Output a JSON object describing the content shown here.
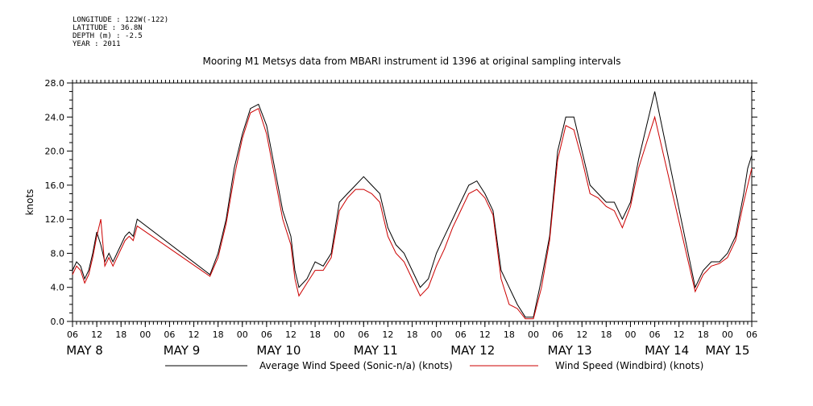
{
  "meta": {
    "longitude": "LONGITUDE : 122W(-122)",
    "latitude": "LATITUDE : 36.8N",
    "depth": "DEPTH (m) : -2.5",
    "year": "YEAR : 2011"
  },
  "chart_data": {
    "type": "line",
    "title": "Mooring M1 Metsys data from MBARI instrument id 1396 at original sampling intervals",
    "ylabel": "knots",
    "xlabel": "",
    "ylim": [
      0,
      28.0
    ],
    "xlim_hours": [
      0,
      168
    ],
    "y_ticks": [
      "0.0",
      "4.0",
      "8.0",
      "12.0",
      "16.0",
      "20.0",
      "24.0",
      "28.0"
    ],
    "hour_tick_labels": [
      "06",
      "12",
      "18",
      "00",
      "06",
      "12",
      "18",
      "00",
      "06",
      "12",
      "18",
      "00",
      "06",
      "12",
      "18",
      "00",
      "06",
      "12",
      "18",
      "00",
      "06",
      "12",
      "18",
      "00",
      "06",
      "12",
      "18",
      "00",
      "06"
    ],
    "day_labels": [
      "MAY  8",
      "MAY  9",
      "MAY 10",
      "MAY 11",
      "MAY 12",
      "MAY 13",
      "MAY 14",
      "MAY 15"
    ],
    "grid": false,
    "legend_position": "bottom",
    "series": [
      {
        "name": "Average Wind Speed (Sonic-n/a) (knots)",
        "color": "#000000",
        "points": [
          [
            0,
            6
          ],
          [
            1,
            7
          ],
          [
            2,
            6.5
          ],
          [
            3,
            5
          ],
          [
            4,
            6
          ],
          [
            5,
            8
          ],
          [
            6,
            10.5
          ],
          [
            7,
            9
          ],
          [
            8,
            7
          ],
          [
            9,
            8
          ],
          [
            10,
            7
          ],
          [
            11,
            8
          ],
          [
            12,
            9
          ],
          [
            13,
            10
          ],
          [
            14,
            10.5
          ],
          [
            15,
            10
          ],
          [
            16,
            12
          ],
          [
            34,
            5.5
          ],
          [
            36,
            8
          ],
          [
            38,
            12
          ],
          [
            40,
            18
          ],
          [
            42,
            22
          ],
          [
            44,
            25
          ],
          [
            46,
            25.5
          ],
          [
            48,
            23
          ],
          [
            50,
            18
          ],
          [
            52,
            13
          ],
          [
            54,
            10
          ],
          [
            55,
            6
          ],
          [
            56,
            4
          ],
          [
            58,
            5
          ],
          [
            60,
            7
          ],
          [
            62,
            6.5
          ],
          [
            64,
            8
          ],
          [
            66,
            14
          ],
          [
            68,
            15
          ],
          [
            70,
            16
          ],
          [
            72,
            17
          ],
          [
            74,
            16
          ],
          [
            76,
            15
          ],
          [
            78,
            11
          ],
          [
            80,
            9
          ],
          [
            82,
            8
          ],
          [
            84,
            6
          ],
          [
            86,
            4
          ],
          [
            88,
            5
          ],
          [
            90,
            8
          ],
          [
            92,
            10
          ],
          [
            94,
            12
          ],
          [
            96,
            14
          ],
          [
            98,
            16
          ],
          [
            100,
            16.5
          ],
          [
            102,
            15
          ],
          [
            104,
            13
          ],
          [
            106,
            6
          ],
          [
            108,
            4
          ],
          [
            110,
            2
          ],
          [
            112,
            0.5
          ],
          [
            114,
            0.5
          ],
          [
            116,
            5
          ],
          [
            118,
            10
          ],
          [
            120,
            20
          ],
          [
            122,
            24
          ],
          [
            124,
            24
          ],
          [
            126,
            20
          ],
          [
            128,
            16
          ],
          [
            130,
            15
          ],
          [
            132,
            14
          ],
          [
            134,
            14
          ],
          [
            136,
            12
          ],
          [
            138,
            14
          ],
          [
            140,
            19
          ],
          [
            142,
            23
          ],
          [
            144,
            27
          ],
          [
            154,
            4
          ],
          [
            156,
            6
          ],
          [
            158,
            7
          ],
          [
            160,
            7
          ],
          [
            162,
            8
          ],
          [
            164,
            10
          ],
          [
            166,
            15
          ],
          [
            167,
            18
          ],
          [
            168,
            19.5
          ]
        ]
      },
      {
        "name": "Wind Speed (Windbird) (knots)",
        "color": "#cc0000",
        "points": [
          [
            0,
            5.5
          ],
          [
            1,
            6.5
          ],
          [
            2,
            6
          ],
          [
            3,
            4.5
          ],
          [
            4,
            5.5
          ],
          [
            5,
            7.5
          ],
          [
            6,
            10
          ],
          [
            7,
            12
          ],
          [
            8,
            6.5
          ],
          [
            9,
            7.5
          ],
          [
            10,
            6.5
          ],
          [
            11,
            7.5
          ],
          [
            12,
            8.5
          ],
          [
            13,
            9.5
          ],
          [
            14,
            10
          ],
          [
            15,
            9.5
          ],
          [
            16,
            11.2
          ],
          [
            34,
            5.3
          ],
          [
            36,
            7.5
          ],
          [
            38,
            11.5
          ],
          [
            40,
            17
          ],
          [
            42,
            21.5
          ],
          [
            44,
            24.5
          ],
          [
            46,
            25
          ],
          [
            48,
            22
          ],
          [
            50,
            17
          ],
          [
            52,
            12
          ],
          [
            54,
            9
          ],
          [
            55,
            5
          ],
          [
            56,
            3
          ],
          [
            58,
            4.5
          ],
          [
            60,
            6
          ],
          [
            62,
            6
          ],
          [
            64,
            7.5
          ],
          [
            66,
            13
          ],
          [
            68,
            14.5
          ],
          [
            70,
            15.5
          ],
          [
            72,
            15.5
          ],
          [
            74,
            15
          ],
          [
            76,
            14
          ],
          [
            78,
            10
          ],
          [
            80,
            8
          ],
          [
            82,
            7
          ],
          [
            84,
            5
          ],
          [
            86,
            3
          ],
          [
            88,
            4
          ],
          [
            90,
            6.5
          ],
          [
            92,
            8.5
          ],
          [
            94,
            11
          ],
          [
            96,
            13
          ],
          [
            98,
            15
          ],
          [
            100,
            15.5
          ],
          [
            102,
            14.5
          ],
          [
            104,
            12.5
          ],
          [
            106,
            5
          ],
          [
            108,
            2
          ],
          [
            110,
            1.5
          ],
          [
            112,
            0.3
          ],
          [
            114,
            0.3
          ],
          [
            116,
            4
          ],
          [
            118,
            9.5
          ],
          [
            120,
            19
          ],
          [
            122,
            23
          ],
          [
            124,
            22.5
          ],
          [
            126,
            19
          ],
          [
            128,
            15
          ],
          [
            130,
            14.5
          ],
          [
            132,
            13.5
          ],
          [
            134,
            13
          ],
          [
            136,
            11
          ],
          [
            138,
            13.5
          ],
          [
            140,
            18
          ],
          [
            142,
            21
          ],
          [
            144,
            24
          ],
          [
            154,
            3.5
          ],
          [
            156,
            5.5
          ],
          [
            158,
            6.5
          ],
          [
            160,
            6.8
          ],
          [
            162,
            7.5
          ],
          [
            164,
            9.5
          ],
          [
            166,
            14
          ],
          [
            167,
            16
          ],
          [
            168,
            18
          ]
        ]
      }
    ]
  }
}
